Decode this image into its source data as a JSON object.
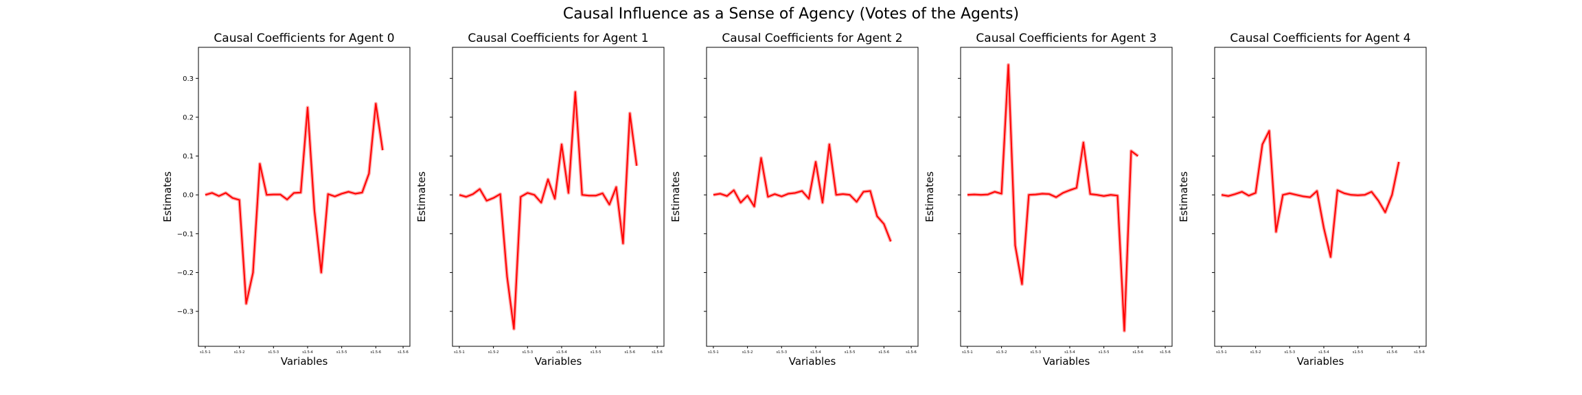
{
  "title": "Causal Influence as a Sense of Agency (Votes of the Agents)",
  "chart_data": [
    {
      "type": "line",
      "title": "Causal Coefficients for Agent 0",
      "xlabel": "Variables",
      "ylabel": "Estimates",
      "show_ytick_labels": true,
      "ylim": [
        -0.39,
        0.38
      ],
      "yticks": [
        -0.3,
        -0.2,
        -0.1,
        0.0,
        0.1,
        0.2,
        0.3
      ],
      "ytick_labels": [
        "−0.3",
        "−0.2",
        "−0.1",
        "0.0",
        "0.1",
        "0.2",
        "0.3"
      ],
      "xlim": [
        -1,
        30
      ],
      "xticks": [
        0,
        5,
        10,
        15,
        20,
        25,
        29
      ],
      "xtick_labels": [
        "s1.5-1",
        "s1.5-2",
        "s1.5-3",
        "s1.5-4",
        "s1.5-5",
        "s1.5-6",
        "s1.5-6"
      ],
      "color": "#ff0000",
      "series": [
        {
          "values": [
            0.0,
            0.005,
            -0.003,
            0.005,
            -0.008,
            -0.013,
            -0.28,
            -0.2,
            0.08,
            0.0,
            0.001,
            0.001,
            -0.012,
            0.005,
            0.006,
            0.225,
            -0.04,
            -0.2,
            0.002,
            -0.004,
            0.003,
            0.008,
            0.003,
            0.006,
            0.055,
            0.235,
            0.115
          ]
        }
      ]
    },
    {
      "type": "line",
      "title": "Causal Coefficients for Agent 1",
      "xlabel": "Variables",
      "ylabel": "Estimates",
      "show_ytick_labels": false,
      "ylim": [
        -0.39,
        0.38
      ],
      "yticks": [
        -0.3,
        -0.2,
        -0.1,
        0.0,
        0.1,
        0.2,
        0.3
      ],
      "ytick_labels": [
        "",
        "",
        "",
        "",
        "",
        "",
        ""
      ],
      "xlim": [
        -1,
        30
      ],
      "xticks": [
        0,
        5,
        10,
        15,
        20,
        25,
        29
      ],
      "xtick_labels": [
        "s1.5-1",
        "s1.5-2",
        "s1.5-3",
        "s1.5-4",
        "s1.5-5",
        "s1.5-6",
        "s1.5-6"
      ],
      "color": "#ff0000",
      "series": [
        {
          "values": [
            0.0,
            -0.005,
            0.002,
            0.015,
            -0.015,
            -0.008,
            0.002,
            -0.21,
            -0.345,
            -0.005,
            0.005,
            0.0,
            -0.02,
            0.04,
            -0.01,
            0.13,
            0.005,
            0.265,
            0.0,
            -0.002,
            -0.002,
            0.004,
            -0.025,
            0.02,
            -0.125,
            0.21,
            0.075
          ]
        }
      ]
    },
    {
      "type": "line",
      "title": "Causal Coefficients for Agent 2",
      "xlabel": "Variables",
      "ylabel": "Estimates",
      "show_ytick_labels": false,
      "ylim": [
        -0.39,
        0.38
      ],
      "yticks": [
        -0.3,
        -0.2,
        -0.1,
        0.0,
        0.1,
        0.2,
        0.3
      ],
      "ytick_labels": [
        "",
        "",
        "",
        "",
        "",
        "",
        ""
      ],
      "xlim": [
        -1,
        30
      ],
      "xticks": [
        0,
        5,
        10,
        15,
        20,
        25,
        29
      ],
      "xtick_labels": [
        "s1.5-1",
        "s1.5-2",
        "s1.5-3",
        "s1.5-4",
        "s1.5-5",
        "s1.5-6",
        "s1.5-6"
      ],
      "color": "#ff0000",
      "series": [
        {
          "values": [
            0.0,
            0.003,
            -0.003,
            0.012,
            -0.02,
            -0.002,
            -0.03,
            0.095,
            -0.005,
            0.002,
            -0.004,
            0.003,
            0.005,
            0.01,
            -0.01,
            0.085,
            -0.02,
            0.13,
            0.0,
            0.002,
            0.0,
            -0.018,
            0.008,
            0.01,
            -0.055,
            -0.075,
            -0.12
          ]
        }
      ]
    },
    {
      "type": "line",
      "title": "Causal Coefficients for Agent 3",
      "xlabel": "Variables",
      "ylabel": "Estimates",
      "show_ytick_labels": false,
      "ylim": [
        -0.39,
        0.38
      ],
      "yticks": [
        -0.3,
        -0.2,
        -0.1,
        0.0,
        0.1,
        0.2,
        0.3
      ],
      "ytick_labels": [
        "",
        "",
        "",
        "",
        "",
        "",
        ""
      ],
      "xlim": [
        -1,
        30
      ],
      "xticks": [
        0,
        5,
        10,
        15,
        20,
        25,
        29
      ],
      "xtick_labels": [
        "s1.5-1",
        "s1.5-2",
        "s1.5-3",
        "s1.5-4",
        "s1.5-5",
        "s1.5-6",
        "s1.5-6"
      ],
      "color": "#ff0000",
      "series": [
        {
          "values": [
            0.0,
            0.001,
            0.0,
            0.001,
            0.008,
            0.003,
            0.335,
            -0.13,
            -0.23,
            0.0,
            0.001,
            0.003,
            0.002,
            -0.006,
            0.005,
            0.012,
            0.018,
            0.135,
            0.002,
            0.0,
            -0.003,
            0.0,
            -0.002,
            -0.35,
            0.113,
            0.1
          ]
        }
      ]
    },
    {
      "type": "line",
      "title": "Causal Coefficients for Agent 4",
      "xlabel": "Variables",
      "ylabel": "Estimates",
      "show_ytick_labels": false,
      "ylim": [
        -0.39,
        0.38
      ],
      "yticks": [
        -0.3,
        -0.2,
        -0.1,
        0.0,
        0.1,
        0.2,
        0.3
      ],
      "ytick_labels": [
        "",
        "",
        "",
        "",
        "",
        "",
        ""
      ],
      "xlim": [
        -1,
        30
      ],
      "xticks": [
        0,
        5,
        10,
        15,
        20,
        25,
        29
      ],
      "xtick_labels": [
        "s1.5-1",
        "s1.5-2",
        "s1.5-3",
        "s1.5-4",
        "s1.5-5",
        "s1.5-6",
        "s1.5-6"
      ],
      "color": "#ff0000",
      "series": [
        {
          "values": [
            0.0,
            -0.003,
            0.002,
            0.008,
            -0.002,
            0.005,
            0.13,
            0.165,
            -0.095,
            0.0,
            0.004,
            0.0,
            -0.004,
            -0.006,
            0.01,
            -0.085,
            -0.16,
            0.012,
            0.004,
            0.0,
            -0.001,
            0.0,
            0.008,
            -0.015,
            -0.045,
            0.0,
            0.085
          ]
        }
      ]
    }
  ]
}
